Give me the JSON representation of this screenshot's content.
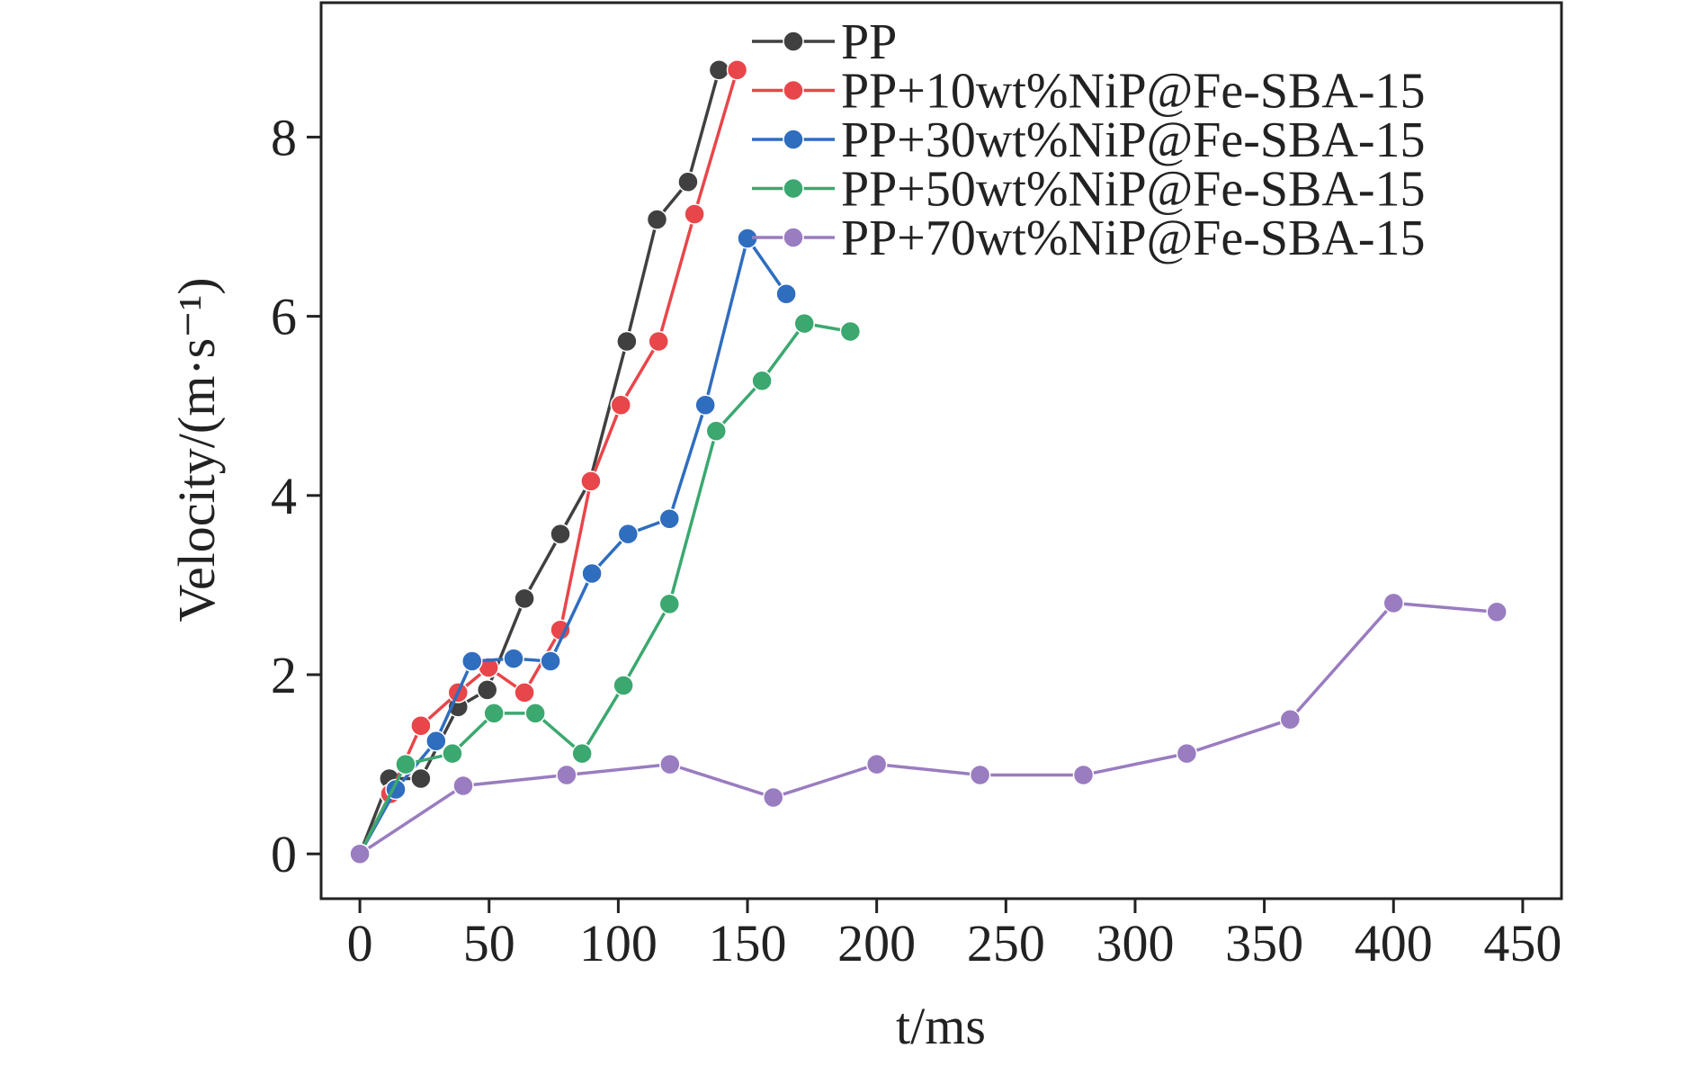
{
  "chart_data": {
    "type": "line",
    "x_label": "t/ms",
    "y_label": "Velocity/(m·s⁻¹)",
    "xlim": [
      -15,
      465
    ],
    "ylim": [
      -0.5,
      9.5
    ],
    "xticks": [
      0,
      50,
      100,
      150,
      200,
      250,
      300,
      350,
      400,
      450
    ],
    "yticks": [
      0,
      2,
      4,
      6,
      8
    ],
    "legend": "top",
    "series": [
      {
        "name": "PP",
        "color": "#404040",
        "x": [
          0,
          11.4,
          23.6,
          38,
          49.3,
          63.7,
          77.6,
          89,
          103.3,
          115,
          127,
          139
        ],
        "values": [
          0,
          0.84,
          0.84,
          1.64,
          1.83,
          2.85,
          3.57,
          4.16,
          5.72,
          7.08,
          7.5,
          8.75
        ]
      },
      {
        "name": "PP+10wt%NiP@Fe-SBA-15",
        "color": "#e8464a",
        "x": [
          0,
          11.8,
          23.6,
          38,
          49.8,
          63.7,
          77.6,
          89.4,
          101,
          115.6,
          129.5,
          146
        ],
        "values": [
          0,
          0.67,
          1.43,
          1.8,
          2.08,
          1.8,
          2.5,
          4.16,
          5.01,
          5.72,
          7.14,
          8.75
        ]
      },
      {
        "name": "PP+30wt%NiP@Fe-SBA-15",
        "color": "#2f6dbf",
        "x": [
          0,
          13.9,
          29.5,
          43.4,
          59.5,
          73.8,
          89.8,
          103.8,
          119.8,
          133.7,
          150,
          165
        ],
        "values": [
          0,
          0.72,
          1.26,
          2.15,
          2.18,
          2.15,
          3.13,
          3.57,
          3.74,
          5.01,
          6.87,
          6.25
        ]
      },
      {
        "name": "PP+50wt%NiP@Fe-SBA-15",
        "color": "#3ba870",
        "x": [
          0,
          17.7,
          35.8,
          51.9,
          67.9,
          86,
          102,
          119.8,
          137.9,
          155.6,
          172,
          189.8
        ],
        "values": [
          0,
          1.0,
          1.12,
          1.57,
          1.57,
          1.12,
          1.88,
          2.79,
          4.72,
          5.28,
          5.92,
          5.83
        ]
      },
      {
        "name": "PP+70wt%NiP@Fe-SBA-15",
        "color": "#9a7cc0",
        "x": [
          0,
          40,
          80,
          120,
          160,
          200,
          240,
          280,
          320,
          360,
          400,
          440
        ],
        "values": [
          0,
          0.76,
          0.88,
          1.0,
          0.63,
          1.0,
          0.88,
          0.88,
          1.12,
          1.5,
          2.8,
          2.7
        ]
      }
    ]
  }
}
